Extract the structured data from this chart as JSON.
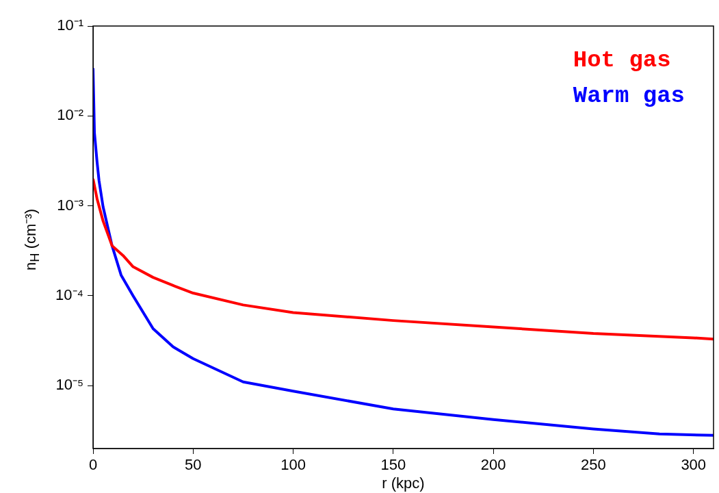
{
  "chart_data": {
    "type": "line",
    "xlabel": "r (kpc)",
    "ylabel": "n$_{H}$ (cm⁻³)",
    "log": "y",
    "grid": false,
    "legend": "top right",
    "marker": "none",
    "line_style": "solid",
    "xlim": [
      0,
      310
    ],
    "xticks": [
      0,
      50,
      100,
      150,
      200,
      250,
      300
    ],
    "ylim": [
      2e-06,
      0.1
    ],
    "yticks": [
      {
        "value": 0.1,
        "label": "10⁻¹"
      },
      {
        "value": 0.01,
        "label": "10⁻²"
      },
      {
        "value": 0.001,
        "label": "10⁻³"
      },
      {
        "value": 0.0001,
        "label": "10⁻⁴"
      },
      {
        "value": 1e-05,
        "label": "10⁻⁵"
      }
    ],
    "series": [
      {
        "name": "Hot gas",
        "color": "#ff0000",
        "x": [
          0,
          2,
          5,
          9.5,
          15,
          20,
          30,
          40,
          50,
          75,
          100,
          150,
          200,
          250,
          300,
          310
        ],
        "values": [
          0.002,
          0.0012,
          0.00068,
          0.00036,
          0.00028,
          0.00021,
          0.00016,
          0.00013,
          0.000107,
          7.9e-05,
          6.5e-05,
          5.3e-05,
          4.5e-05,
          3.8e-05,
          3.4e-05,
          3.3e-05
        ]
      },
      {
        "name": "Warm gas",
        "color": "#0000ff",
        "x": [
          0,
          0.7,
          2,
          3,
          5,
          9.5,
          14,
          20,
          30,
          40,
          50,
          75,
          100,
          150,
          200,
          250,
          283,
          310
        ],
        "values": [
          0.034,
          0.0065,
          0.0031,
          0.0019,
          0.00098,
          0.00036,
          0.00017,
          0.0001,
          4.3e-05,
          2.7e-05,
          2e-05,
          1.1e-05,
          8.7e-06,
          5.5e-06,
          4.2e-06,
          3.3e-06,
          2.9e-06,
          2.8e-06
        ]
      }
    ]
  }
}
